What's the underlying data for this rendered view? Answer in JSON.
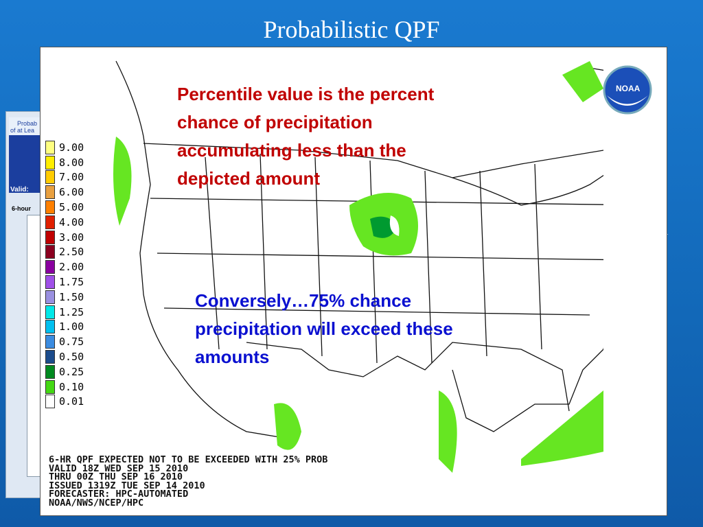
{
  "slide_title": "Probabilistic QPF",
  "background_slide": {
    "header_lines": [
      "Probab",
      "of at Lea"
    ],
    "valid_label": "Valid:",
    "tab_label": "6-hour",
    "right_edge_text": "d"
  },
  "map": {
    "legend": [
      {
        "label": "9.00",
        "color": "#ffff80"
      },
      {
        "label": "8.00",
        "color": "#ffee00"
      },
      {
        "label": "7.00",
        "color": "#ffcc00"
      },
      {
        "label": "6.00",
        "color": "#e8a040"
      },
      {
        "label": "5.00",
        "color": "#ff8000"
      },
      {
        "label": "4.00",
        "color": "#e02000"
      },
      {
        "label": "3.00",
        "color": "#c00000"
      },
      {
        "label": "2.50",
        "color": "#8b0020"
      },
      {
        "label": "2.00",
        "color": "#8a00a0"
      },
      {
        "label": "1.75",
        "color": "#a050e8"
      },
      {
        "label": "1.50",
        "color": "#9a90e0"
      },
      {
        "label": "1.25",
        "color": "#00e8e8"
      },
      {
        "label": "1.00",
        "color": "#00c0f0"
      },
      {
        "label": "0.75",
        "color": "#3c8ce0"
      },
      {
        "label": "0.50",
        "color": "#1c4c8c"
      },
      {
        "label": "0.25",
        "color": "#008a20"
      },
      {
        "label": "0.10",
        "color": "#44d814"
      },
      {
        "label": "0.01",
        "color": "#ffffff"
      }
    ],
    "footer_lines": [
      "6-HR QPF EXPECTED NOT TO BE EXCEEDED WITH 25% PROB",
      "VALID 18Z WED SEP 15 2010",
      "THRU 00Z THU SEP 16 2010",
      "ISSUED 1319Z TUE SEP 14 2010",
      "FORECASTER: HPC-AUTOMATED",
      "NOAA/NWS/NCEP/HPC"
    ],
    "logo_text": "NOAA"
  },
  "annotations": {
    "percentile_note": [
      "Percentile value is the percent",
      "chance of precipitation",
      "accumulating less than the",
      "depicted amount"
    ],
    "converse_note": [
      "Conversely…75% chance",
      "precipitation will exceed these",
      "amounts"
    ]
  }
}
